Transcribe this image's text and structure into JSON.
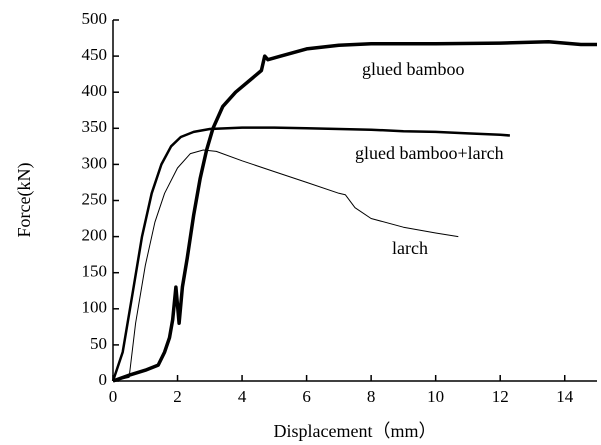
{
  "chart_data": {
    "type": "line",
    "xlabel": "Displacement（mm）",
    "ylabel": "Force(kN)",
    "xlim": [
      0,
      15
    ],
    "ylim": [
      0,
      500
    ],
    "xticks": [
      0,
      2,
      4,
      6,
      8,
      10,
      12,
      14
    ],
    "yticks": [
      0,
      50,
      100,
      150,
      200,
      250,
      300,
      350,
      400,
      450,
      500
    ],
    "series": [
      {
        "name": "glued bamboo",
        "color": "#000000",
        "x": [
          0,
          0.5,
          1,
          1.4,
          1.6,
          1.75,
          1.85,
          1.95,
          2.05,
          2.15,
          2.3,
          2.5,
          2.7,
          2.9,
          3.1,
          3.4,
          3.8,
          4.2,
          4.6,
          4.7,
          4.8,
          5.2,
          6,
          7,
          8,
          10,
          12,
          13.5,
          14.5,
          15
        ],
        "values": [
          0,
          8,
          15,
          22,
          40,
          60,
          85,
          130,
          80,
          130,
          170,
          230,
          280,
          320,
          350,
          380,
          400,
          415,
          430,
          450,
          445,
          450,
          460,
          465,
          467,
          467,
          468,
          470,
          466,
          466
        ]
      },
      {
        "name": "glued bamboo+larch",
        "color": "#000000",
        "x": [
          0,
          0.3,
          0.6,
          0.9,
          1.2,
          1.5,
          1.8,
          2.1,
          2.5,
          3,
          4,
          5,
          6,
          7,
          8,
          9,
          10,
          11,
          12,
          12.3
        ],
        "values": [
          0,
          40,
          120,
          200,
          260,
          300,
          325,
          338,
          345,
          349,
          351,
          351,
          350,
          349,
          348,
          346,
          345,
          343,
          341,
          340
        ]
      },
      {
        "name": "larch",
        "color": "#000000",
        "x": [
          0,
          0.5,
          0.7,
          1.0,
          1.3,
          1.6,
          2,
          2.4,
          2.8,
          3.2,
          4,
          5,
          6,
          7,
          7.2,
          7.5,
          8,
          9,
          10,
          10.7
        ],
        "values": [
          0,
          5,
          80,
          160,
          220,
          260,
          295,
          315,
          320,
          318,
          305,
          290,
          275,
          260,
          258,
          240,
          225,
          213,
          205,
          200
        ]
      }
    ]
  }
}
